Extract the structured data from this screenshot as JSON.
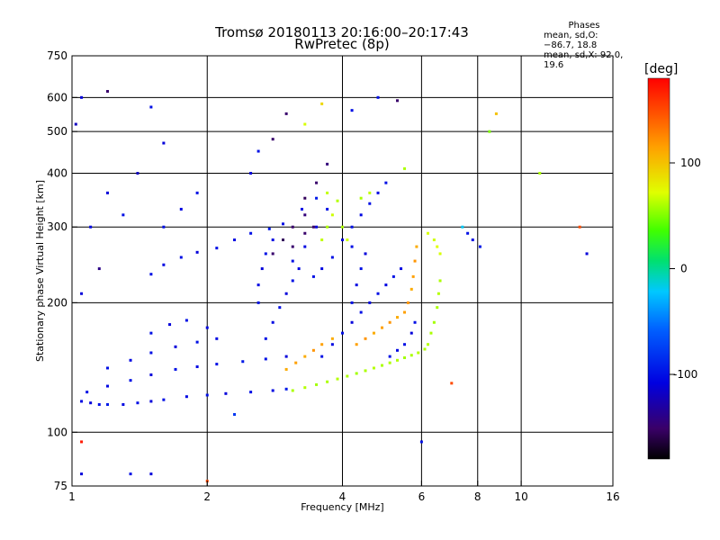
{
  "header": {
    "title_line1": "Tromsø 20180113 20:16:00–20:17:43",
    "title_line2": "RwPretec (8p)"
  },
  "stats": {
    "heading": "Phases",
    "line_o": "mean, sd,O: −86.7, 18.8",
    "line_x": "mean, sd,X:  92.0, 19.6"
  },
  "chart_data": {
    "type": "scatter",
    "xlabel": "Frequency [MHz]",
    "ylabel": "Stationary phase Virtual Height [km]",
    "x_scale": "log",
    "y_scale": "log",
    "xlim": [
      1,
      16
    ],
    "ylim": [
      75,
      750
    ],
    "x_ticks": [
      1,
      2,
      4,
      6,
      8,
      10,
      16
    ],
    "y_ticks": [
      75,
      100,
      200,
      300,
      400,
      500,
      600,
      750
    ],
    "x_gridlines": [
      2,
      4,
      6,
      8,
      10
    ],
    "y_gridlines": [
      100,
      200,
      300,
      400,
      500,
      600
    ],
    "grid": true,
    "colorbar": {
      "label": "[deg]",
      "range": [
        -180,
        180
      ],
      "ticks": [
        100,
        0,
        -100
      ]
    },
    "series": [
      {
        "points": [
          [
            1.05,
            118,
            -105
          ],
          [
            1.1,
            117,
            -110
          ],
          [
            1.15,
            116,
            -100
          ],
          [
            1.2,
            116,
            -95
          ],
          [
            1.3,
            116,
            -105
          ],
          [
            1.4,
            117,
            -100
          ],
          [
            1.5,
            118,
            -110
          ],
          [
            1.6,
            119,
            -100
          ],
          [
            1.8,
            121,
            -105
          ],
          [
            2.0,
            122,
            -100
          ],
          [
            2.2,
            123,
            -110
          ],
          [
            2.5,
            124,
            -100
          ],
          [
            2.8,
            125,
            -105
          ],
          [
            3.0,
            126,
            -95
          ],
          [
            1.08,
            124,
            -100
          ],
          [
            1.2,
            128,
            -105
          ],
          [
            1.35,
            132,
            -100
          ],
          [
            1.5,
            136,
            -110
          ],
          [
            1.7,
            140,
            -100
          ],
          [
            1.9,
            142,
            -105
          ],
          [
            2.1,
            144,
            -100
          ],
          [
            2.4,
            146,
            -95
          ],
          [
            2.7,
            148,
            -100
          ],
          [
            3.0,
            150,
            -110
          ],
          [
            1.2,
            141,
            -100
          ],
          [
            1.35,
            147,
            -105
          ],
          [
            1.5,
            153,
            -100
          ],
          [
            1.7,
            158,
            -110
          ],
          [
            1.9,
            162,
            -100
          ],
          [
            2.1,
            165,
            -105
          ],
          [
            1.5,
            170,
            -100
          ],
          [
            1.65,
            178,
            -110
          ],
          [
            1.8,
            182,
            -100
          ],
          [
            2.0,
            175,
            -105
          ],
          [
            1.5,
            233,
            -100
          ],
          [
            1.6,
            245,
            -105
          ],
          [
            1.75,
            255,
            -100
          ],
          [
            1.9,
            262,
            -110
          ],
          [
            2.1,
            268,
            -100
          ],
          [
            2.3,
            280,
            -105
          ],
          [
            2.5,
            290,
            -100
          ],
          [
            2.75,
            297,
            -95
          ],
          [
            2.95,
            305,
            -100
          ],
          [
            2.6,
            200,
            -100
          ],
          [
            2.6,
            220,
            -105
          ],
          [
            2.65,
            240,
            -110
          ],
          [
            2.7,
            260,
            -100
          ],
          [
            2.8,
            280,
            -105
          ],
          [
            2.7,
            165,
            -100
          ],
          [
            2.8,
            180,
            -105
          ],
          [
            2.9,
            195,
            -100
          ],
          [
            3.0,
            210,
            -110
          ],
          [
            3.1,
            225,
            -100
          ],
          [
            3.2,
            240,
            -105
          ],
          [
            2.8,
            260,
            -150
          ],
          [
            2.95,
            280,
            -155
          ],
          [
            3.1,
            300,
            -150
          ],
          [
            3.3,
            320,
            -145
          ],
          [
            3.45,
            300,
            -150
          ],
          [
            3.3,
            350,
            -155
          ],
          [
            3.5,
            380,
            -150
          ],
          [
            3.7,
            420,
            -145
          ],
          [
            3.3,
            290,
            -150
          ],
          [
            3.1,
            270,
            -150
          ],
          [
            3.1,
            250,
            -100
          ],
          [
            3.3,
            270,
            -105
          ],
          [
            3.5,
            300,
            -110
          ],
          [
            3.7,
            330,
            -100
          ],
          [
            3.5,
            350,
            -95
          ],
          [
            3.25,
            330,
            -100
          ],
          [
            3.45,
            230,
            -100
          ],
          [
            3.6,
            240,
            -105
          ],
          [
            3.8,
            255,
            -100
          ],
          [
            4.0,
            280,
            -110
          ],
          [
            4.2,
            300,
            -100
          ],
          [
            4.4,
            320,
            -105
          ],
          [
            4.6,
            340,
            -100
          ],
          [
            4.8,
            360,
            -105
          ],
          [
            5.0,
            380,
            -100
          ],
          [
            3.6,
            150,
            -100
          ],
          [
            3.8,
            160,
            -105
          ],
          [
            4.0,
            170,
            -100
          ],
          [
            4.2,
            180,
            -110
          ],
          [
            4.4,
            190,
            -100
          ],
          [
            4.6,
            200,
            -105
          ],
          [
            4.8,
            210,
            -100
          ],
          [
            5.0,
            220,
            -105
          ],
          [
            5.2,
            230,
            -100
          ],
          [
            5.4,
            240,
            -105
          ],
          [
            4.2,
            200,
            -100
          ],
          [
            4.3,
            220,
            -105
          ],
          [
            4.4,
            240,
            -100
          ],
          [
            4.5,
            260,
            -110
          ],
          [
            4.2,
            270,
            -100
          ],
          [
            5.1,
            150,
            -100
          ],
          [
            5.3,
            155,
            -105
          ],
          [
            5.5,
            160,
            -100
          ],
          [
            5.7,
            170,
            -110
          ],
          [
            5.8,
            180,
            -100
          ],
          [
            3.1,
            125,
            60
          ],
          [
            3.3,
            127,
            62
          ],
          [
            3.5,
            129,
            58
          ],
          [
            3.7,
            131,
            60
          ],
          [
            3.9,
            133,
            62
          ],
          [
            4.1,
            135,
            60
          ],
          [
            4.3,
            137,
            58
          ],
          [
            4.5,
            139,
            60
          ],
          [
            4.7,
            141,
            62
          ],
          [
            4.9,
            143,
            60
          ],
          [
            5.1,
            145,
            60
          ],
          [
            5.3,
            147,
            62
          ],
          [
            5.5,
            149,
            58
          ],
          [
            5.7,
            151,
            60
          ],
          [
            5.9,
            153,
            62
          ],
          [
            6.1,
            156,
            60
          ],
          [
            6.2,
            160,
            62
          ],
          [
            6.3,
            170,
            60
          ],
          [
            6.4,
            180,
            58
          ],
          [
            6.5,
            195,
            60
          ],
          [
            6.55,
            210,
            62
          ],
          [
            6.6,
            225,
            60
          ],
          [
            3.0,
            140,
            110
          ],
          [
            3.15,
            145,
            115
          ],
          [
            3.3,
            150,
            110
          ],
          [
            3.45,
            155,
            120
          ],
          [
            3.6,
            160,
            115
          ],
          [
            3.8,
            165,
            110
          ],
          [
            4.3,
            160,
            115
          ],
          [
            4.5,
            165,
            120
          ],
          [
            4.7,
            170,
            110
          ],
          [
            4.9,
            175,
            115
          ],
          [
            5.1,
            180,
            120
          ],
          [
            5.3,
            185,
            110
          ],
          [
            5.5,
            190,
            115
          ],
          [
            5.6,
            200,
            120
          ],
          [
            5.7,
            215,
            110
          ],
          [
            5.75,
            230,
            115
          ],
          [
            5.8,
            250,
            120
          ],
          [
            5.85,
            270,
            110
          ],
          [
            3.6,
            280,
            65
          ],
          [
            3.7,
            300,
            60
          ],
          [
            3.8,
            320,
            68
          ],
          [
            3.9,
            345,
            62
          ],
          [
            3.7,
            360,
            65
          ],
          [
            4.0,
            300,
            60
          ],
          [
            4.1,
            280,
            68
          ],
          [
            4.4,
            350,
            60
          ],
          [
            4.6,
            360,
            65
          ],
          [
            5.5,
            410,
            60
          ],
          [
            6.2,
            290,
            70
          ],
          [
            6.4,
            280,
            68
          ],
          [
            6.5,
            270,
            72
          ],
          [
            6.6,
            260,
            70
          ],
          [
            7.4,
            300,
            -20
          ],
          [
            7.6,
            290,
            -100
          ],
          [
            7.8,
            280,
            -105
          ],
          [
            8.1,
            270,
            -95
          ],
          [
            1.6,
            300,
            -100
          ],
          [
            1.75,
            330,
            -105
          ],
          [
            1.9,
            360,
            -100
          ],
          [
            2.5,
            400,
            -110
          ],
          [
            2.6,
            450,
            -100
          ],
          [
            2.8,
            480,
            -150
          ],
          [
            3.0,
            550,
            -150
          ],
          [
            3.3,
            520,
            70
          ],
          [
            3.6,
            580,
            90
          ],
          [
            4.2,
            560,
            -100
          ],
          [
            4.8,
            600,
            -100
          ],
          [
            5.3,
            590,
            -150
          ],
          [
            1.02,
            520,
            -120
          ],
          [
            1.05,
            600,
            -110
          ],
          [
            1.2,
            620,
            -150
          ],
          [
            1.5,
            570,
            -100
          ],
          [
            1.6,
            470,
            -110
          ],
          [
            1.4,
            400,
            -120
          ],
          [
            1.3,
            320,
            -100
          ],
          [
            1.2,
            360,
            -110
          ],
          [
            1.1,
            300,
            -105
          ],
          [
            1.15,
            240,
            -140
          ],
          [
            1.05,
            210,
            -110
          ],
          [
            8.5,
            500,
            50
          ],
          [
            8.8,
            550,
            100
          ],
          [
            11.0,
            400,
            60
          ],
          [
            13.5,
            300,
            150
          ],
          [
            14.0,
            260,
            -110
          ],
          [
            7.0,
            130,
            150
          ],
          [
            6.0,
            95,
            -100
          ],
          [
            1.05,
            95,
            170
          ],
          [
            1.05,
            80,
            -110
          ],
          [
            1.35,
            80,
            -100
          ],
          [
            1.5,
            80,
            -110
          ],
          [
            2.0,
            77,
            150
          ],
          [
            2.3,
            110,
            -80
          ]
        ]
      }
    ]
  }
}
